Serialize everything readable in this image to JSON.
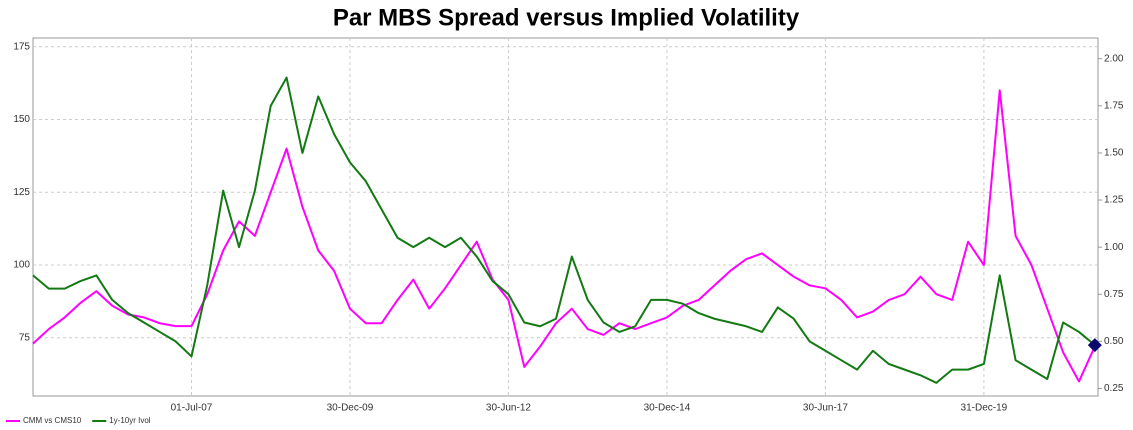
{
  "chart_data": {
    "type": "line",
    "title": "Par MBS Spread versus Implied Volatility",
    "x": [
      2005,
      2005.25,
      2005.5,
      2005.75,
      2006,
      2006.25,
      2006.5,
      2006.75,
      2007,
      2007.25,
      2007.5,
      2007.75,
      2008,
      2008.25,
      2008.5,
      2008.75,
      2009,
      2009.25,
      2009.5,
      2009.75,
      2010,
      2010.25,
      2010.5,
      2010.75,
      2011,
      2011.25,
      2011.5,
      2011.75,
      2012,
      2012.25,
      2012.5,
      2012.75,
      2013,
      2013.25,
      2013.5,
      2013.75,
      2014,
      2014.25,
      2014.5,
      2014.75,
      2015,
      2015.25,
      2015.5,
      2015.75,
      2016,
      2016.25,
      2016.5,
      2016.75,
      2017,
      2017.25,
      2017.5,
      2017.75,
      2018,
      2018.25,
      2018.5,
      2018.75,
      2019,
      2019.25,
      2019.5,
      2019.75,
      2020,
      2020.25,
      2020.5,
      2020.75,
      2021,
      2021.25,
      2021.5,
      2021.75
    ],
    "series": [
      {
        "name": "CMM vs CMS10",
        "color": "#ff00ff",
        "values": [
          73,
          78,
          82,
          87,
          91,
          86,
          83,
          82,
          80,
          79,
          79,
          90,
          105,
          115,
          110,
          125,
          140,
          120,
          105,
          98,
          85,
          80,
          80,
          88,
          95,
          85,
          92,
          100,
          108,
          95,
          88,
          65,
          72,
          80,
          85,
          78,
          76,
          80,
          78,
          80,
          82,
          86,
          88,
          93,
          98,
          102,
          104,
          100,
          96,
          93,
          92,
          88,
          82,
          84,
          88,
          90,
          96,
          90,
          88,
          108,
          100,
          160,
          110,
          100,
          85,
          70,
          60,
          72
        ]
      },
      {
        "name": "1y-10yr Ivol",
        "color": "#137a13",
        "axis": "y2",
        "values": [
          0.85,
          0.78,
          0.78,
          0.82,
          0.85,
          0.72,
          0.65,
          0.6,
          0.55,
          0.5,
          0.42,
          0.8,
          1.3,
          1.0,
          1.3,
          1.75,
          1.9,
          1.5,
          1.8,
          1.6,
          1.45,
          1.35,
          1.2,
          1.05,
          1.0,
          1.05,
          1.0,
          1.05,
          0.95,
          0.82,
          0.75,
          0.6,
          0.58,
          0.62,
          0.95,
          0.72,
          0.6,
          0.55,
          0.58,
          0.72,
          0.72,
          0.7,
          0.65,
          0.62,
          0.6,
          0.58,
          0.55,
          0.68,
          0.62,
          0.5,
          0.45,
          0.4,
          0.35,
          0.45,
          0.38,
          0.35,
          0.32,
          0.28,
          0.35,
          0.35,
          0.38,
          0.85,
          0.4,
          0.35,
          0.3,
          0.6,
          0.55,
          0.48
        ]
      }
    ],
    "xlim": [
      2005,
      2021.8
    ],
    "xticks": [
      {
        "value": 2007.5,
        "label": "01-Jul-07"
      },
      {
        "value": 2010,
        "label": "30-Dec-09"
      },
      {
        "value": 2012.5,
        "label": "30-Jun-12"
      },
      {
        "value": 2015,
        "label": "30-Dec-14"
      },
      {
        "value": 2017.5,
        "label": "30-Jun-17"
      },
      {
        "value": 2020,
        "label": "31-Dec-19"
      }
    ],
    "ylim": [
      55,
      178
    ],
    "yticks": [
      75,
      100,
      125,
      150,
      175
    ],
    "y2lim": [
      0.21,
      2.11
    ],
    "y2ticks": [
      {
        "value": 0.25,
        "label": "0.25"
      },
      {
        "value": 0.5,
        "label": "0.50"
      },
      {
        "value": 0.75,
        "label": "0.75"
      },
      {
        "value": 1,
        "label": "1.00"
      },
      {
        "value": 1.25,
        "label": "1.25"
      },
      {
        "value": 1.5,
        "label": "1.50"
      },
      {
        "value": 1.75,
        "label": "1.75"
      },
      {
        "value": 2,
        "label": "2.00"
      }
    ],
    "grid": true,
    "legend": "bottom-left"
  }
}
